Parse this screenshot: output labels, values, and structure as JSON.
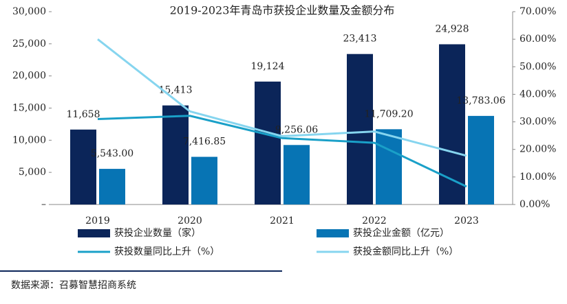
{
  "chart_data": {
    "type": "bar",
    "title": "2019-2023年青岛市获投企业数量及金额分布",
    "categories": [
      "2019",
      "2020",
      "2021",
      "2022",
      "2023"
    ],
    "series": [
      {
        "name": "获投企业数量（家）",
        "type": "bar",
        "color": "#0b2559",
        "values": [
          11658,
          15413,
          19124,
          23413,
          24928
        ],
        "value_labels": [
          "11,658",
          "15,413",
          "19,124",
          "23,413",
          "24,928"
        ]
      },
      {
        "name": "获投企业金额（亿元）",
        "type": "bar",
        "color": "#0774b4",
        "values": [
          5543,
          7416.85,
          9256.06,
          11709.2,
          13783.06
        ],
        "value_labels": [
          "5,543.00",
          "7,416.85",
          "9,256.06",
          "11,709.20",
          "13,783.06"
        ]
      },
      {
        "name": "获投数量同比上升（%）",
        "type": "line",
        "axis": "y2",
        "color": "#1aa0c8",
        "values": [
          31,
          32.2,
          24.1,
          22.4,
          6.5
        ]
      },
      {
        "name": "获投金额同比上升（%）",
        "type": "line",
        "axis": "y2",
        "color": "#86d5ef",
        "values": [
          60,
          33.8,
          24.8,
          26.5,
          17.7
        ]
      }
    ],
    "ylim": [
      0,
      30000
    ],
    "yticks": [
      {
        "value": 0,
        "label": "–"
      },
      {
        "value": 5000,
        "label": "5,000"
      },
      {
        "value": 10000,
        "label": "10,000"
      },
      {
        "value": 15000,
        "label": "15,000"
      },
      {
        "value": 20000,
        "label": "20,000"
      },
      {
        "value": 25000,
        "label": "25,000"
      },
      {
        "value": 30000,
        "label": "30,000"
      }
    ],
    "y2lim": [
      0,
      70
    ],
    "y2ticks": [
      {
        "value": 0,
        "label": "0.00%"
      },
      {
        "value": 10,
        "label": "10.00%"
      },
      {
        "value": 20,
        "label": "20.00%"
      },
      {
        "value": 30,
        "label": "30.00%"
      },
      {
        "value": 40,
        "label": "40.00%"
      },
      {
        "value": 50,
        "label": "50.00%"
      },
      {
        "value": 60,
        "label": "60.00%"
      },
      {
        "value": 70,
        "label": "70.00%"
      }
    ],
    "source": "数据来源：召募智慧招商系统"
  }
}
